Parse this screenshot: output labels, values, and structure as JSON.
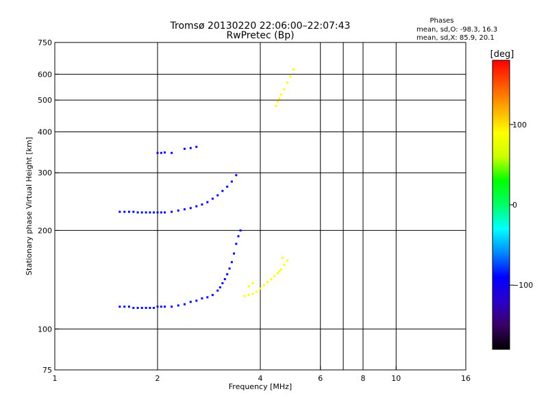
{
  "chart_data": {
    "type": "scatter",
    "title": "Tromsø 20130220 22:06:00–22:07:43",
    "subtitle": "RwPretec (Bp)",
    "xlabel": "Frequency [MHz]",
    "ylabel": "Stationary phase Virtual Height [km]",
    "xscale": "log",
    "yscale": "log",
    "xlim": [
      1,
      16
    ],
    "ylim": [
      75,
      750
    ],
    "xticks": [
      1,
      2,
      4,
      6,
      8,
      10,
      16
    ],
    "xtick_labels": [
      "1",
      "2",
      "4",
      "6",
      "8",
      "10",
      "16"
    ],
    "xgrid": [
      2,
      4,
      6,
      7,
      8,
      10
    ],
    "yticks": [
      75,
      100,
      200,
      300,
      400,
      500,
      600,
      750
    ],
    "ytick_labels": [
      "75",
      "100",
      "200",
      "300",
      "400",
      "500",
      "600",
      "750"
    ],
    "ygrid": [
      100,
      200,
      300,
      400,
      500,
      600
    ],
    "grid": true,
    "info": {
      "heading": "Phases",
      "line_o": "mean, sd,O: -98.3, 16.3",
      "line_x": "mean, sd,X:  85.9, 20.1"
    },
    "colorbar": {
      "label": "[deg]",
      "range": [
        -180,
        180
      ],
      "ticks": [
        100,
        0,
        -100
      ],
      "tick_labels": [
        "100",
        "0",
        "−100"
      ],
      "colors": [
        "#000000",
        "#3a0066",
        "#2b00cc",
        "#0000ff",
        "#0088ff",
        "#00ffff",
        "#00ff66",
        "#00ff00",
        "#ccff00",
        "#ffff00",
        "#ffaa00",
        "#ff5500",
        "#ff0000"
      ]
    },
    "series": [
      {
        "mode": "O",
        "phase": -100,
        "points": [
          [
            1.55,
            117
          ],
          [
            1.6,
            117
          ],
          [
            1.65,
            117
          ],
          [
            1.7,
            116
          ],
          [
            1.75,
            116
          ],
          [
            1.8,
            116
          ],
          [
            1.85,
            116
          ],
          [
            1.9,
            116
          ],
          [
            1.95,
            116
          ],
          [
            2.0,
            117
          ],
          [
            2.05,
            117
          ],
          [
            2.1,
            117
          ],
          [
            2.2,
            117
          ],
          [
            2.3,
            118
          ],
          [
            2.4,
            119
          ],
          [
            2.5,
            121
          ],
          [
            2.6,
            122
          ],
          [
            2.7,
            124
          ],
          [
            2.8,
            125
          ],
          [
            2.9,
            127
          ],
          [
            3.0,
            131
          ],
          [
            3.05,
            134
          ],
          [
            3.1,
            138
          ],
          [
            3.15,
            142
          ],
          [
            3.2,
            147
          ],
          [
            3.25,
            153
          ],
          [
            3.3,
            160
          ],
          [
            3.35,
            170
          ],
          [
            3.4,
            182
          ],
          [
            3.45,
            192
          ],
          [
            3.5,
            200
          ],
          [
            1.55,
            228
          ],
          [
            1.6,
            228
          ],
          [
            1.65,
            228
          ],
          [
            1.7,
            228
          ],
          [
            1.75,
            227
          ],
          [
            1.8,
            227
          ],
          [
            1.85,
            227
          ],
          [
            1.9,
            227
          ],
          [
            1.95,
            227
          ],
          [
            2.0,
            227
          ],
          [
            2.05,
            227
          ],
          [
            2.1,
            227
          ],
          [
            2.2,
            228
          ],
          [
            2.3,
            230
          ],
          [
            2.4,
            232
          ],
          [
            2.5,
            234
          ],
          [
            2.6,
            237
          ],
          [
            2.7,
            240
          ],
          [
            2.8,
            244
          ],
          [
            2.9,
            250
          ],
          [
            3.0,
            256
          ],
          [
            3.1,
            264
          ],
          [
            3.2,
            272
          ],
          [
            3.3,
            282
          ],
          [
            3.4,
            295
          ],
          [
            2.0,
            345
          ],
          [
            2.05,
            345
          ],
          [
            2.1,
            346
          ],
          [
            2.2,
            345
          ],
          [
            2.4,
            355
          ],
          [
            2.5,
            357
          ],
          [
            2.6,
            360
          ]
        ]
      },
      {
        "mode": "X",
        "phase": 90,
        "points": [
          [
            3.6,
            126
          ],
          [
            3.7,
            127
          ],
          [
            3.8,
            128
          ],
          [
            3.9,
            130
          ],
          [
            4.0,
            133
          ],
          [
            4.1,
            136
          ],
          [
            4.2,
            139
          ],
          [
            4.3,
            142
          ],
          [
            4.4,
            145
          ],
          [
            4.5,
            148
          ],
          [
            4.6,
            152
          ],
          [
            4.7,
            157
          ],
          [
            4.8,
            162
          ],
          [
            4.45,
            480
          ],
          [
            4.5,
            495
          ],
          [
            4.55,
            505
          ],
          [
            4.6,
            520
          ],
          [
            4.7,
            540
          ],
          [
            4.8,
            565
          ],
          [
            4.9,
            590
          ],
          [
            5.0,
            620
          ],
          [
            3.7,
            135
          ],
          [
            3.8,
            138
          ],
          [
            4.55,
            150
          ],
          [
            4.65,
            165
          ]
        ]
      }
    ]
  }
}
